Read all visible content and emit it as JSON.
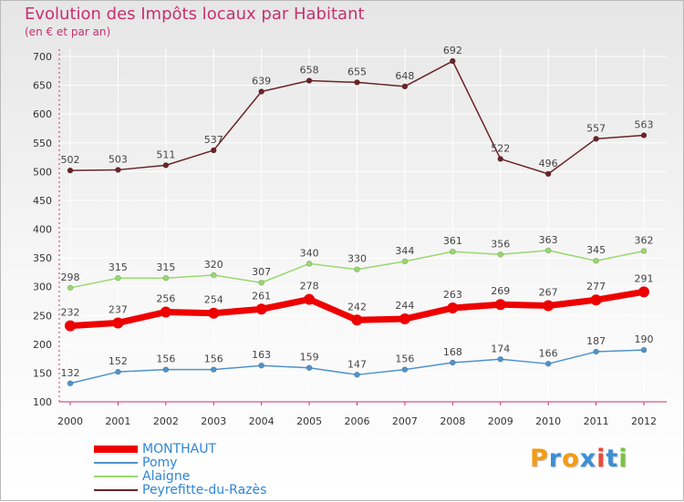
{
  "title": "Evolution des Impôts locaux par Habitant",
  "subtitle": "(en € et par an)",
  "chart_data": {
    "type": "line",
    "x": [
      "2000",
      "2001",
      "2002",
      "2003",
      "2004",
      "2005",
      "2006",
      "2007",
      "2008",
      "2009",
      "2010",
      "2011",
      "2012"
    ],
    "ylim": [
      100,
      700
    ],
    "yticks": [
      100,
      150,
      200,
      250,
      300,
      350,
      400,
      450,
      500,
      550,
      600,
      650,
      700
    ],
    "grid": true,
    "legend_position": "bottom-left",
    "series": [
      {
        "name": "MONTHAUT",
        "color": "#ee0000",
        "values": [
          232,
          237,
          256,
          254,
          261,
          278,
          242,
          244,
          263,
          269,
          267,
          277,
          291
        ]
      },
      {
        "name": "Pomy",
        "color": "#4f93cb",
        "values": [
          132,
          152,
          156,
          156,
          163,
          159,
          147,
          156,
          168,
          174,
          166,
          187,
          190
        ]
      },
      {
        "name": "Alaigne",
        "color": "#99d86e",
        "values": [
          298,
          315,
          315,
          320,
          307,
          340,
          330,
          344,
          361,
          356,
          363,
          345,
          362
        ]
      },
      {
        "name": "Peyrefitte-du-Razès",
        "color": "#6b2326",
        "values": [
          502,
          503,
          511,
          537,
          639,
          658,
          655,
          648,
          692,
          522,
          496,
          557,
          563
        ]
      }
    ]
  },
  "logo": {
    "text": "Proxiti",
    "colors": [
      "#f39c12",
      "#3b8fd6",
      "#f39c12",
      "#3b8fd6",
      "#e74c3c",
      "#3b8fd6",
      "#7cc243"
    ]
  }
}
